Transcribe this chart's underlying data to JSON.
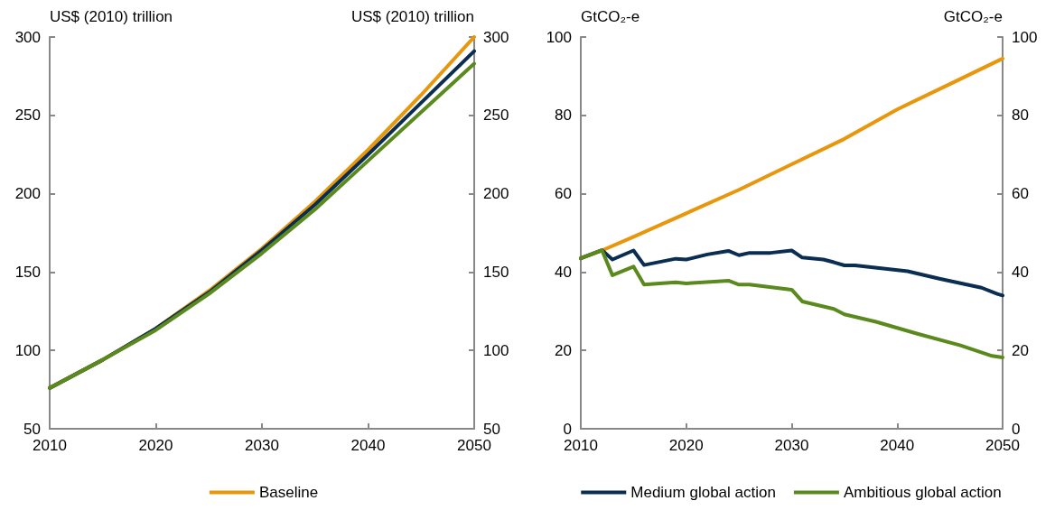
{
  "chart_data": [
    {
      "type": "line",
      "ylabel": "US$ (2010) trillion",
      "y2label": "US$ (2010) trillion",
      "x": [
        2010,
        2015,
        2020,
        2025,
        2030,
        2035,
        2040,
        2045,
        2050
      ],
      "xlim": [
        2010,
        2050
      ],
      "xticks": [
        2010,
        2020,
        2030,
        2040,
        2050
      ],
      "ylim": [
        50,
        300
      ],
      "yticks": [
        50,
        100,
        150,
        200,
        250,
        300
      ],
      "y2lim": [
        50,
        300
      ],
      "y2ticks": [
        50,
        100,
        150,
        200,
        250,
        300
      ],
      "grid": false,
      "legend": "bottom",
      "marker": "none",
      "line_style": "solid",
      "series": [
        {
          "name": "Baseline",
          "color": "#e8960c",
          "values": [
            76,
            94,
            114,
            138,
            165,
            195,
            228,
            263,
            300
          ]
        },
        {
          "color": "#0a2d52",
          "values": [
            76,
            94,
            114,
            137,
            164,
            193,
            225,
            258,
            291
          ]
        },
        {
          "color": "#5a8a1e",
          "values": [
            76,
            94,
            113,
            136,
            162,
            190,
            221,
            252,
            283
          ]
        }
      ]
    },
    {
      "type": "line",
      "ylabel": "GtCO₂-e",
      "y2label": "GtCO₂-e",
      "xlim": [
        2010,
        2050
      ],
      "xticks": [
        2010,
        2020,
        2030,
        2040,
        2050
      ],
      "ylim": [
        0,
        100
      ],
      "yticks": [
        0,
        20,
        40,
        60,
        80,
        100
      ],
      "y2lim": [
        0,
        100
      ],
      "y2ticks": [
        0,
        20,
        40,
        60,
        80,
        100
      ],
      "grid": false,
      "legend": "bottom",
      "marker": "none",
      "line_style": "solid",
      "series": [
        {
          "color": "#e8960c",
          "x": [
            2010,
            2012,
            2015,
            2020,
            2025,
            2030,
            2035,
            2040,
            2045,
            2050
          ],
          "values": [
            43.5,
            45.5,
            49,
            55,
            61,
            67.5,
            74,
            81.5,
            88,
            94.5
          ]
        },
        {
          "name": "Medium global action",
          "color": "#0a2d52",
          "x": [
            2010,
            2012,
            2013,
            2015,
            2016,
            2019,
            2020,
            2022,
            2024,
            2025,
            2026,
            2028,
            2030,
            2031,
            2033,
            2034,
            2035,
            2036,
            2041,
            2044,
            2048,
            2049.5,
            2050
          ],
          "values": [
            43.5,
            45.6,
            43.2,
            45.5,
            41.8,
            43.4,
            43.2,
            44.5,
            45.4,
            44.3,
            44.9,
            44.9,
            45.5,
            43.7,
            43.2,
            42.5,
            41.7,
            41.7,
            40.2,
            38.3,
            36,
            34.4,
            34
          ]
        },
        {
          "name": "Ambitious global action",
          "color": "#5a8a1e",
          "x": [
            2010,
            2012,
            2013,
            2015,
            2016,
            2019,
            2020,
            2024,
            2025,
            2026,
            2030,
            2031,
            2034,
            2035,
            2038,
            2042,
            2046,
            2049,
            2050
          ],
          "values": [
            43.5,
            45.6,
            39.2,
            41.4,
            36.8,
            37.4,
            37.1,
            37.8,
            36.8,
            36.8,
            35.5,
            32.5,
            30.6,
            29.2,
            27.3,
            24.2,
            21.3,
            18.6,
            18.2
          ]
        }
      ]
    }
  ]
}
